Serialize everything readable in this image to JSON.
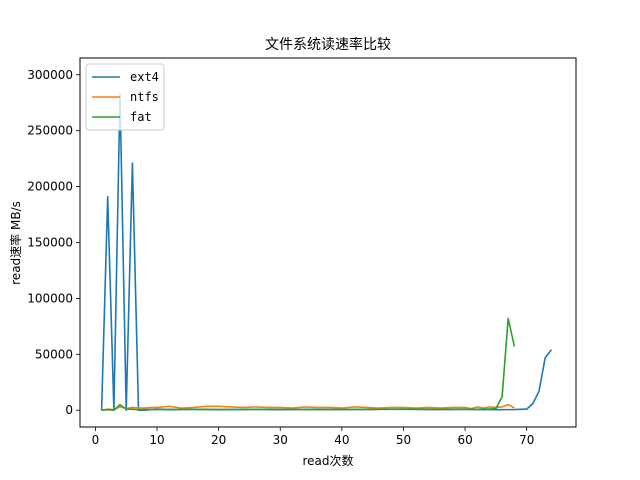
{
  "chart_data": {
    "type": "line",
    "title": "文件系统读速率比较",
    "xlabel": "read次数",
    "ylabel": "read速率 MB/s",
    "xlim": [
      -2.5,
      78
    ],
    "ylim": [
      -15000,
      315000
    ],
    "xticks": [
      0,
      10,
      20,
      30,
      40,
      50,
      60,
      70
    ],
    "yticks": [
      0,
      50000,
      100000,
      150000,
      200000,
      250000,
      300000
    ],
    "grid": false,
    "legend_position": "top-left",
    "series": [
      {
        "name": "ext4",
        "color": "#1f77b4",
        "x": [
          1,
          2,
          3,
          4,
          5,
          6,
          7,
          8,
          10,
          12,
          15,
          20,
          25,
          30,
          35,
          40,
          45,
          50,
          55,
          60,
          65,
          68,
          69,
          70,
          71,
          72,
          73,
          74
        ],
        "y": [
          0,
          191000,
          0,
          283000,
          0,
          221000,
          0,
          0,
          1000,
          500,
          800,
          600,
          700,
          500,
          800,
          600,
          700,
          800,
          600,
          700,
          500,
          600,
          800,
          1000,
          6000,
          17000,
          47000,
          54000
        ]
      },
      {
        "name": "ntfs",
        "color": "#ff7f0e",
        "x": [
          1,
          2,
          3,
          4,
          5,
          6,
          7,
          8,
          9,
          10,
          12,
          14,
          16,
          18,
          20,
          22,
          24,
          26,
          28,
          30,
          32,
          34,
          36,
          38,
          40,
          42,
          44,
          46,
          48,
          50,
          52,
          54,
          56,
          58,
          60,
          61,
          62,
          63,
          64,
          65,
          66,
          67,
          68
        ],
        "y": [
          0,
          1000,
          500,
          3000,
          1500,
          2500,
          2000,
          2000,
          2500,
          2500,
          3500,
          2000,
          2500,
          3500,
          3500,
          3000,
          2500,
          3000,
          2500,
          2500,
          2000,
          3000,
          2500,
          2500,
          2000,
          3000,
          2500,
          2000,
          2500,
          2500,
          2000,
          2500,
          2000,
          2500,
          2500,
          1500,
          3000,
          2000,
          3000,
          2500,
          3000,
          5000,
          2000
        ]
      },
      {
        "name": "fat",
        "color": "#2ca02c",
        "x": [
          1,
          2,
          3,
          4,
          5,
          6,
          7,
          8,
          10,
          15,
          20,
          25,
          30,
          35,
          40,
          45,
          50,
          55,
          60,
          62,
          63,
          64,
          65,
          66,
          67,
          68
        ],
        "y": [
          0,
          500,
          0,
          5000,
          1000,
          800,
          500,
          700,
          600,
          800,
          600,
          700,
          800,
          600,
          700,
          800,
          1000,
          800,
          900,
          800,
          1000,
          1000,
          1500,
          12000,
          82000,
          57000
        ]
      }
    ]
  }
}
